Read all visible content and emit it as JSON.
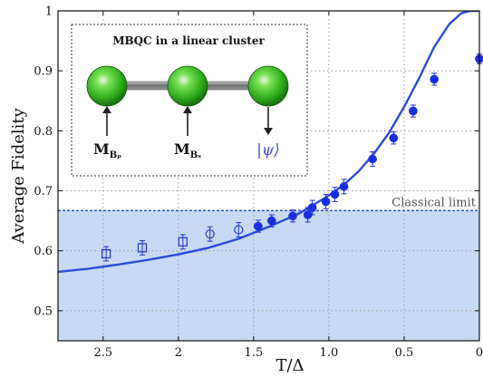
{
  "chart_data": {
    "type": "scatter",
    "ylabel": "Average Fidelity",
    "xlabel": "T/Δ",
    "xlim": [
      2.8,
      0
    ],
    "ylim": [
      0.45,
      1.0
    ],
    "x_reversed": true,
    "x_ticks": [
      2.5,
      2.0,
      1.5,
      1.0,
      0.5,
      0
    ],
    "x_tick_labels": [
      "2.5",
      "2",
      "1.5",
      "1.0",
      "0.5",
      "0"
    ],
    "y_ticks": [
      0.5,
      0.6,
      0.7,
      0.8,
      0.9,
      1.0
    ],
    "y_tick_labels": [
      "0.5",
      "0.6",
      "0.7",
      "0.8",
      "0.9",
      "1"
    ],
    "grid": "dotted",
    "classical_limit": {
      "value": 0.667,
      "label": "Classical limit",
      "shade_below": true,
      "shade_color": "#c7daf3",
      "line_color": "#2a56c6"
    },
    "series": [
      {
        "marker": "square-open",
        "color": "#2233cc",
        "points": [
          {
            "x": 2.48,
            "y": 0.595,
            "err": 0.012
          },
          {
            "x": 2.24,
            "y": 0.605,
            "err": 0.012
          },
          {
            "x": 1.97,
            "y": 0.615,
            "err": 0.012
          }
        ]
      },
      {
        "marker": "circle-open",
        "color": "#2233cc",
        "points": [
          {
            "x": 1.79,
            "y": 0.628,
            "err": 0.012
          },
          {
            "x": 1.6,
            "y": 0.635,
            "err": 0.012
          }
        ]
      },
      {
        "marker": "circle-filled",
        "color": "#1a2ee0",
        "points": [
          {
            "x": 1.47,
            "y": 0.641,
            "err": 0.01
          },
          {
            "x": 1.38,
            "y": 0.65,
            "err": 0.01
          },
          {
            "x": 1.24,
            "y": 0.658,
            "err": 0.01
          },
          {
            "x": 1.14,
            "y": 0.66,
            "err": 0.012
          },
          {
            "x": 1.11,
            "y": 0.672,
            "err": 0.012
          },
          {
            "x": 1.02,
            "y": 0.682,
            "err": 0.012
          },
          {
            "x": 0.96,
            "y": 0.694,
            "err": 0.012
          },
          {
            "x": 0.9,
            "y": 0.707,
            "err": 0.012
          },
          {
            "x": 0.71,
            "y": 0.753,
            "err": 0.012
          },
          {
            "x": 0.57,
            "y": 0.788,
            "err": 0.01
          },
          {
            "x": 0.44,
            "y": 0.833,
            "err": 0.01
          },
          {
            "x": 0.3,
            "y": 0.886,
            "err": 0.01
          },
          {
            "x": 0.0,
            "y": 0.92,
            "err": 0.008
          }
        ]
      }
    ],
    "theory_curve": {
      "color": "#2a4bd8",
      "points": [
        [
          2.8,
          0.565
        ],
        [
          2.6,
          0.57
        ],
        [
          2.4,
          0.577
        ],
        [
          2.2,
          0.585
        ],
        [
          2.0,
          0.594
        ],
        [
          1.8,
          0.605
        ],
        [
          1.6,
          0.62
        ],
        [
          1.4,
          0.64
        ],
        [
          1.2,
          0.662
        ],
        [
          1.0,
          0.692
        ],
        [
          0.9,
          0.71
        ],
        [
          0.8,
          0.733
        ],
        [
          0.7,
          0.762
        ],
        [
          0.6,
          0.797
        ],
        [
          0.5,
          0.84
        ],
        [
          0.4,
          0.888
        ],
        [
          0.3,
          0.94
        ],
        [
          0.2,
          0.978
        ],
        [
          0.12,
          0.996
        ],
        [
          0.06,
          1.0
        ],
        [
          0.0,
          1.0
        ]
      ]
    }
  },
  "inset": {
    "title": "MBQC in a linear cluster",
    "measurements": [
      "M",
      "M"
    ],
    "measurement_subscripts": [
      "Bₚ",
      "Bₛ"
    ],
    "output_label": "|ψ⟩"
  }
}
